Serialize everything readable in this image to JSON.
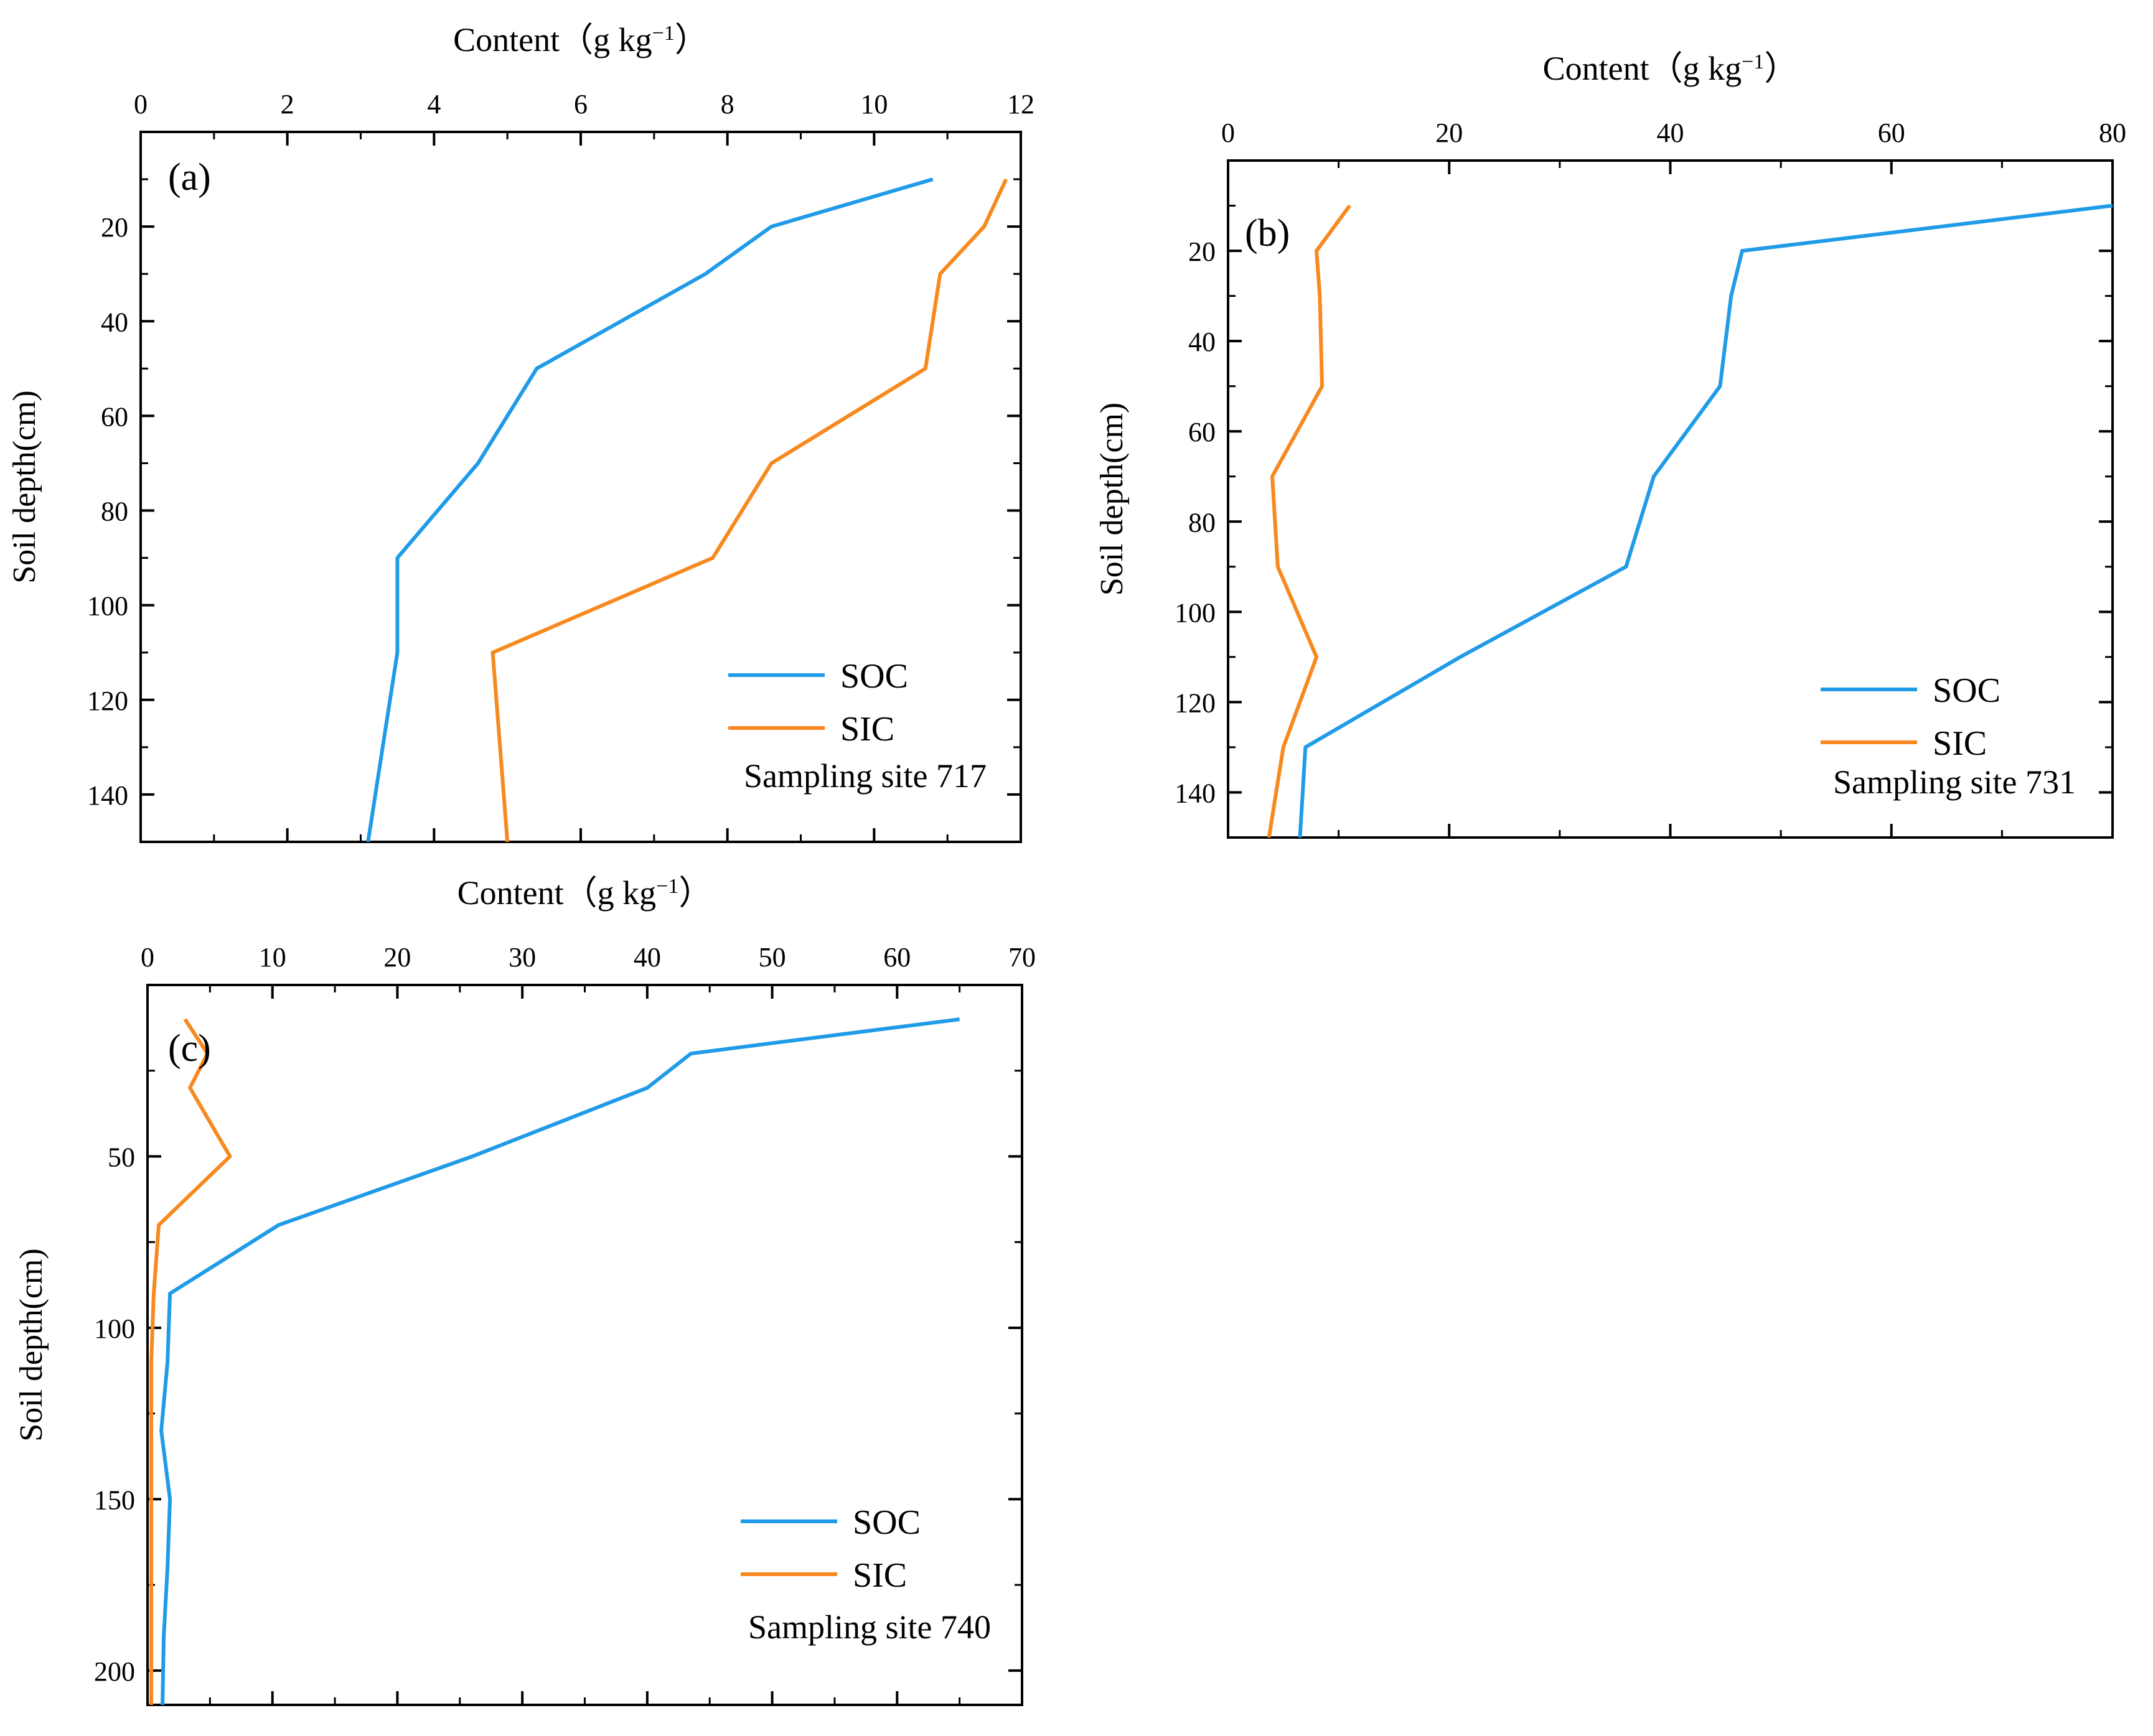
{
  "colors": {
    "soc": "#1f9be8",
    "sic": "#f7891f",
    "axis": "#000000",
    "background": "#ffffff"
  },
  "chart_data": [
    {
      "panel": "a",
      "type": "line",
      "panel_label": "(a)",
      "xlabel_main": "Content",
      "xlabel_unit_open": "（g kg",
      "xlabel_unit_sup": "−1",
      "xlabel_unit_close": "）",
      "ylabel": "Soil depth(cm)",
      "annotation": "Sampling site 717",
      "legend_position": "bottom-right",
      "xlim": [
        0,
        12
      ],
      "ylim": [
        0,
        150
      ],
      "xticks": [
        0,
        2,
        4,
        6,
        8,
        10,
        12
      ],
      "yticks": [
        20,
        40,
        60,
        80,
        100,
        120,
        140
      ],
      "series": [
        {
          "name": "SOC",
          "depth": [
            10,
            20,
            30,
            50,
            70,
            90,
            110,
            130,
            150
          ],
          "content": [
            10.8,
            8.6,
            7.7,
            5.4,
            4.6,
            3.5,
            3.5,
            3.3,
            3.1
          ]
        },
        {
          "name": "SIC",
          "depth": [
            10,
            20,
            30,
            50,
            70,
            90,
            110,
            130,
            150
          ],
          "content": [
            11.8,
            11.5,
            10.9,
            10.7,
            8.6,
            7.8,
            4.8,
            4.9,
            5.0
          ]
        }
      ]
    },
    {
      "panel": "b",
      "type": "line",
      "panel_label": "(b)",
      "xlabel_main": "Content",
      "xlabel_unit_open": "（g kg",
      "xlabel_unit_sup": "−1",
      "xlabel_unit_close": "）",
      "ylabel": "Soil depth(cm)",
      "annotation": "Sampling site 731",
      "legend_position": "bottom-right",
      "xlim": [
        0,
        80
      ],
      "ylim": [
        0,
        150
      ],
      "xticks": [
        0,
        20,
        40,
        60,
        80
      ],
      "yticks": [
        20,
        40,
        60,
        80,
        100,
        120,
        140
      ],
      "series": [
        {
          "name": "SOC",
          "depth": [
            10,
            20,
            30,
            50,
            70,
            90,
            110,
            130,
            150
          ],
          "content": [
            80,
            46.5,
            45.5,
            44.5,
            38.5,
            36,
            21,
            7,
            6.5
          ]
        },
        {
          "name": "SIC",
          "depth": [
            10,
            20,
            30,
            50,
            70,
            90,
            110,
            130,
            150
          ],
          "content": [
            11,
            8,
            8.3,
            8.5,
            4,
            4.5,
            8,
            5,
            3.7
          ]
        }
      ]
    },
    {
      "panel": "c",
      "type": "line",
      "panel_label": "(c)",
      "xlabel_main": "Content",
      "xlabel_unit_open": "（g kg",
      "xlabel_unit_sup": "−1",
      "xlabel_unit_close": "）",
      "ylabel": "Soil depth(cm)",
      "annotation": "Sampling site 740",
      "legend_position": "bottom-right",
      "xlim": [
        0,
        70
      ],
      "ylim": [
        0,
        210
      ],
      "xticks": [
        0,
        10,
        20,
        30,
        40,
        50,
        60,
        70
      ],
      "yticks": [
        50,
        100,
        150,
        200
      ],
      "series": [
        {
          "name": "SOC",
          "depth": [
            10,
            20,
            30,
            50,
            70,
            90,
            110,
            130,
            150,
            170,
            190,
            210
          ],
          "content": [
            65,
            43.5,
            40,
            26,
            10.5,
            1.8,
            1.6,
            1.1,
            1.8,
            1.6,
            1.3,
            1.2
          ]
        },
        {
          "name": "SIC",
          "depth": [
            10,
            20,
            30,
            50,
            70,
            90,
            110,
            130,
            150,
            170,
            190,
            210
          ],
          "content": [
            3.0,
            4.8,
            3.4,
            6.6,
            0.9,
            0.5,
            0.3,
            0.3,
            0.3,
            0.3,
            0.3,
            0.3
          ]
        }
      ]
    }
  ]
}
